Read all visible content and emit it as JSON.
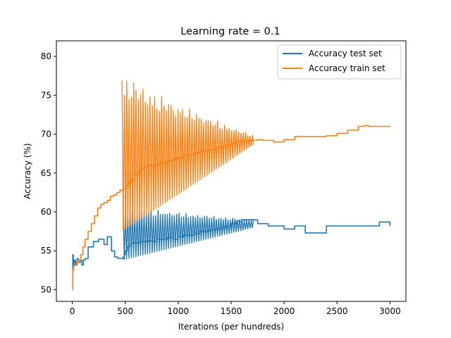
{
  "chart_data": {
    "type": "line",
    "title": "Learning rate = 0.1",
    "xlabel": "Iterations (per hundreds)",
    "ylabel": "Accuracy (%)",
    "xlim": [
      -150,
      3150
    ],
    "ylim": [
      48.5,
      82
    ],
    "xticks": [
      0,
      500,
      1000,
      1500,
      2000,
      2500,
      3000
    ],
    "yticks": [
      50,
      55,
      60,
      65,
      70,
      75,
      80
    ],
    "xtick_labels": [
      "0",
      "500",
      "1000",
      "1500",
      "2000",
      "2500",
      "3000"
    ],
    "ytick_labels": [
      "50",
      "55",
      "60",
      "65",
      "70",
      "75",
      "80"
    ],
    "grid": false,
    "legend_position": "top-right",
    "series": [
      {
        "name": "Accuracy test set",
        "color": "#1f77b4",
        "x": [
          0,
          5,
          10,
          20,
          30,
          45,
          60,
          75,
          90,
          105,
          120,
          150,
          200,
          250,
          300,
          330,
          370,
          400,
          430,
          460,
          480,
          490,
          500,
          520,
          540,
          560,
          580,
          600,
          640,
          680,
          720,
          760,
          800,
          850,
          900,
          950,
          1000,
          1050,
          1100,
          1150,
          1200,
          1250,
          1300,
          1350,
          1400,
          1450,
          1500,
          1550,
          1600,
          1650,
          1700,
          1750,
          1800,
          1850,
          1900,
          1950,
          2000,
          2100,
          2200,
          2300,
          2400,
          2500,
          2600,
          2700,
          2800,
          2900,
          3000
        ],
        "y": [
          50.5,
          54.5,
          53.0,
          53.8,
          53.2,
          54.0,
          53.5,
          53.8,
          53.2,
          53.8,
          54.0,
          55.5,
          56.2,
          56.5,
          55.8,
          56.8,
          55.0,
          54.2,
          54.0,
          54.0,
          54.2,
          54.5,
          55.0,
          55.5,
          55.8,
          56.0,
          56.0,
          56.0,
          56.2,
          56.2,
          56.3,
          56.2,
          56.5,
          56.5,
          56.7,
          56.5,
          56.8,
          57.0,
          57.0,
          57.2,
          57.5,
          57.5,
          57.7,
          57.8,
          58.0,
          58.2,
          58.5,
          58.8,
          59.0,
          59.0,
          59.0,
          58.5,
          58.5,
          58.2,
          58.2,
          58.2,
          57.8,
          58.2,
          57.3,
          57.3,
          58.2,
          58.2,
          58.2,
          58.2,
          58.2,
          58.7,
          58.2
        ]
      },
      {
        "name": "Accuracy train set",
        "color": "#ff7f0e",
        "x": [
          0,
          5,
          10,
          20,
          40,
          60,
          80,
          100,
          120,
          150,
          180,
          210,
          240,
          270,
          300,
          330,
          360,
          390,
          420,
          450,
          480,
          500,
          530,
          560,
          590,
          620,
          650,
          680,
          710,
          740,
          780,
          820,
          860,
          900,
          950,
          1000,
          1050,
          1100,
          1150,
          1200,
          1250,
          1300,
          1350,
          1400,
          1450,
          1500,
          1550,
          1600,
          1650,
          1700,
          1750,
          1800,
          1850,
          1900,
          1950,
          2000,
          2100,
          2200,
          2300,
          2400,
          2500,
          2600,
          2700,
          2750,
          2800,
          2900,
          3000
        ],
        "y": [
          50.0,
          52.5,
          53.0,
          53.3,
          53.5,
          53.8,
          54.5,
          55.5,
          56.5,
          57.5,
          58.5,
          59.5,
          60.5,
          61.0,
          61.2,
          61.5,
          62.0,
          62.2,
          62.5,
          62.8,
          63.0,
          63.3,
          63.8,
          64.2,
          64.8,
          65.2,
          65.6,
          65.8,
          65.9,
          66.0,
          66.1,
          66.2,
          66.4,
          66.6,
          66.8,
          67.0,
          67.2,
          67.4,
          67.6,
          67.8,
          67.9,
          68.0,
          68.2,
          68.4,
          68.6,
          68.8,
          69.0,
          69.1,
          69.2,
          69.2,
          69.3,
          69.2,
          69.2,
          69.0,
          69.0,
          69.3,
          69.7,
          69.7,
          69.7,
          69.8,
          70.1,
          70.5,
          71.0,
          71.1,
          71.0,
          71.0,
          71.1
        ]
      }
    ],
    "oscillations": [
      {
        "series": "Accuracy test set",
        "x_start": 480,
        "x_end": 1720,
        "period": 22,
        "low_start": 53.8,
        "low_end": 58.0,
        "high_start": 61.0,
        "high_end": 59.0
      },
      {
        "series": "Accuracy train set",
        "x_start": 470,
        "x_end": 1720,
        "period": 22,
        "low_start": 57.5,
        "low_end": 68.7,
        "high_start": 78.2,
        "high_end": 69.8
      }
    ]
  }
}
